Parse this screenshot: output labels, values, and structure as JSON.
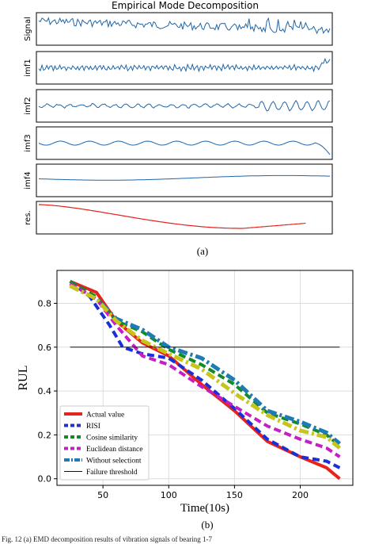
{
  "emd": {
    "title": "Empirical Mode Decomposition",
    "panels": [
      {
        "label": "Signal",
        "color": "#2066a8"
      },
      {
        "label": "imf1",
        "color": "#2066a8"
      },
      {
        "label": "imf2",
        "color": "#2066a8"
      },
      {
        "label": "imf3",
        "color": "#2066a8"
      },
      {
        "label": "imf4",
        "color": "#2066a8"
      },
      {
        "label": "res.",
        "color": "#e3211c"
      }
    ],
    "caption": "(a)"
  },
  "caption_b": "(b)",
  "footer_text": "Fig. 12 (a) EMD decomposition results of vibration signals of bearing 1-7",
  "chart_data": {
    "type": "line",
    "xlabel": "Time(10s)",
    "ylabel": "RUL",
    "xlim": [
      15,
      240
    ],
    "ylim": [
      -0.03,
      0.95
    ],
    "xticks": [
      50,
      100,
      150,
      200
    ],
    "yticks": [
      0.0,
      0.2,
      0.4,
      0.6,
      0.8
    ],
    "grid": true,
    "legend_position": "lower-left",
    "series": [
      {
        "name": "Actual value",
        "color": "#e8231d",
        "style": "solid",
        "width": 4,
        "x": [
          25,
          45,
          60,
          80,
          100,
          125,
          150,
          175,
          200,
          220,
          230
        ],
        "y": [
          0.9,
          0.85,
          0.72,
          0.62,
          0.56,
          0.43,
          0.31,
          0.17,
          0.1,
          0.05,
          0.0
        ]
      },
      {
        "name": "RISI",
        "color": "#1a2fd8",
        "style": "dash",
        "width": 4,
        "x": [
          25,
          40,
          55,
          65,
          80,
          100,
          125,
          150,
          175,
          200,
          220,
          230
        ],
        "y": [
          0.9,
          0.83,
          0.7,
          0.6,
          0.57,
          0.55,
          0.45,
          0.32,
          0.18,
          0.1,
          0.08,
          0.05
        ]
      },
      {
        "name": "Cosine similarity",
        "color": "#128a2a",
        "style": "dash",
        "width": 4,
        "x": [
          25,
          45,
          60,
          80,
          100,
          125,
          150,
          175,
          200,
          220,
          230
        ],
        "y": [
          0.9,
          0.83,
          0.72,
          0.67,
          0.59,
          0.52,
          0.43,
          0.3,
          0.25,
          0.2,
          0.15
        ]
      },
      {
        "name": "Euclidean distance",
        "color": "#c41ec4",
        "style": "dash",
        "width": 4,
        "x": [
          25,
          45,
          60,
          80,
          100,
          125,
          150,
          175,
          200,
          220,
          230
        ],
        "y": [
          0.89,
          0.82,
          0.7,
          0.56,
          0.52,
          0.42,
          0.33,
          0.24,
          0.18,
          0.14,
          0.1
        ]
      },
      {
        "name": "Without selectiont",
        "color": "#1f7bb4",
        "style": "dashdot",
        "width": 5,
        "x": [
          25,
          45,
          60,
          80,
          100,
          125,
          150,
          175,
          200,
          220,
          230
        ],
        "y": [
          0.88,
          0.82,
          0.73,
          0.68,
          0.6,
          0.55,
          0.45,
          0.31,
          0.26,
          0.21,
          0.16
        ]
      },
      {
        "name": "",
        "color": "#c9c41a",
        "style": "dashdot",
        "width": 5,
        "x": [
          25,
          45,
          60,
          80,
          100,
          125,
          150,
          175,
          200,
          220,
          230
        ],
        "y": [
          0.88,
          0.82,
          0.72,
          0.63,
          0.57,
          0.5,
          0.39,
          0.29,
          0.22,
          0.19,
          0.14
        ]
      },
      {
        "name": "Failure threshold",
        "color": "#111111",
        "style": "solid",
        "width": 1,
        "x": [
          25,
          230
        ],
        "y": [
          0.6,
          0.6
        ]
      }
    ]
  }
}
